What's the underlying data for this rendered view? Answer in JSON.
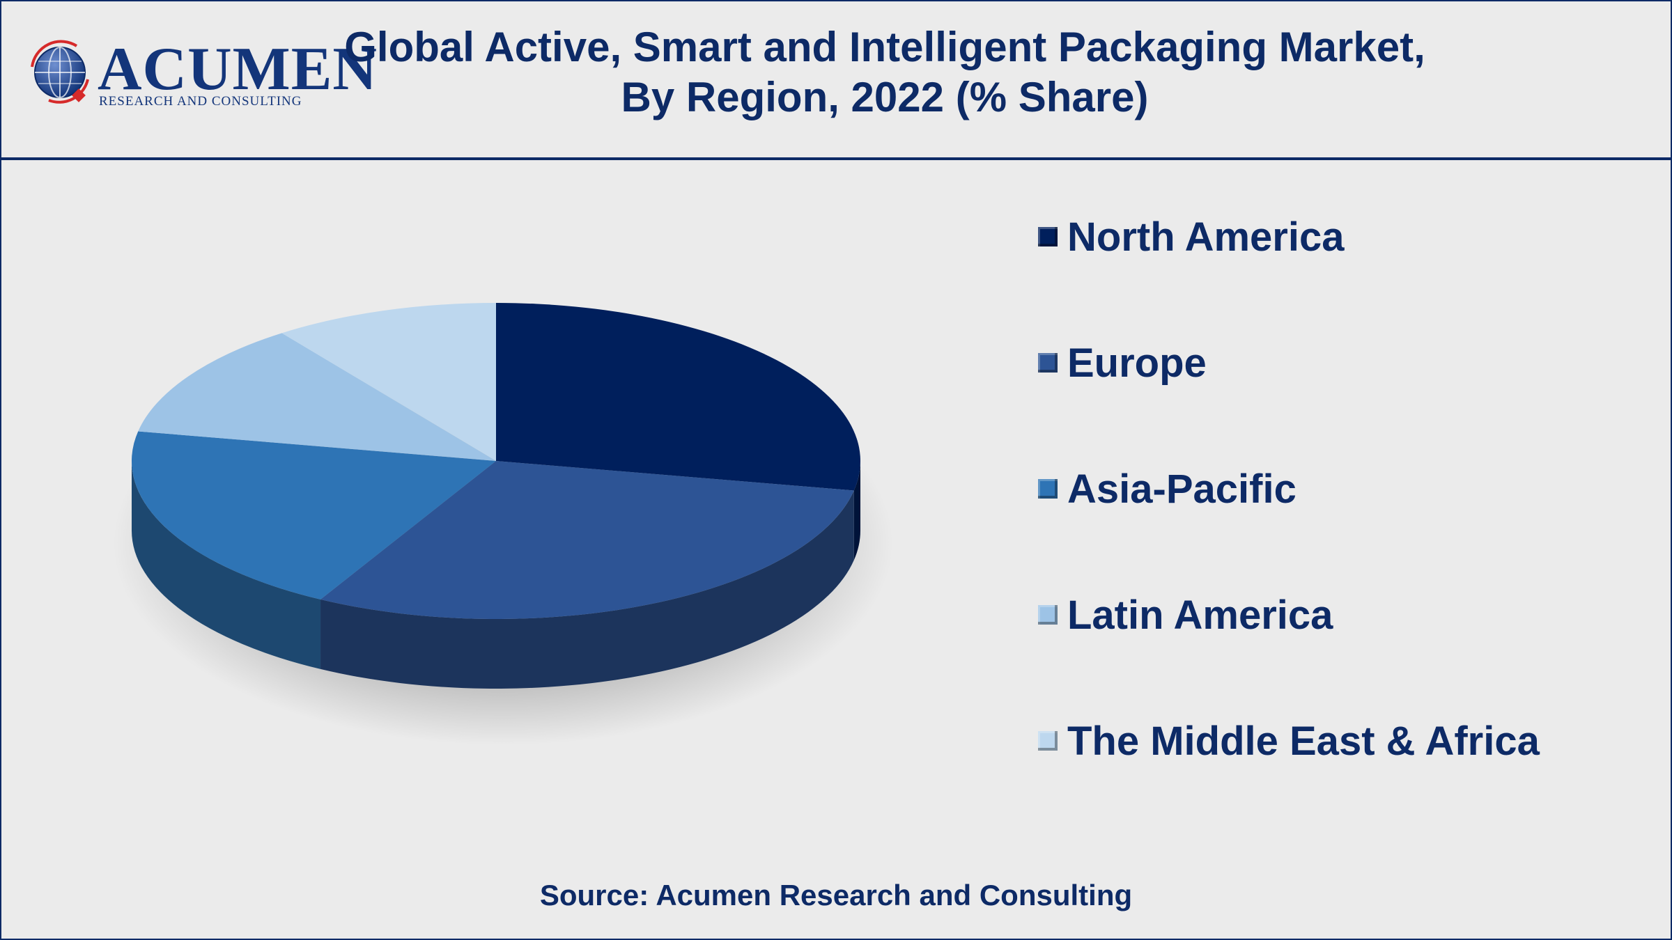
{
  "header": {
    "title_line1": "Global Active, Smart and Intelligent Packaging Market,",
    "title_line2": "By Region, 2022 (% Share)"
  },
  "logo": {
    "wordmark": "ACUMEN",
    "subtitle": "RESEARCH AND CONSULTING"
  },
  "colors": {
    "title": "#0d2a66",
    "background": "#ebebeb"
  },
  "chart_data": {
    "type": "pie",
    "style": "3d",
    "title": "Global Active, Smart and Intelligent Packaging Market, By Region, 2022 (% Share)",
    "legend_position": "right",
    "data_labels_shown": false,
    "series": [
      {
        "name": "North America",
        "value": 28,
        "color": "#001f5c"
      },
      {
        "name": "Europe",
        "value": 30,
        "color": "#2d5495"
      },
      {
        "name": "Asia-Pacific",
        "value": 20,
        "color": "#2e74b5"
      },
      {
        "name": "Latin America",
        "value": 12,
        "color": "#9dc3e6"
      },
      {
        "name": "The Middle East & Africa",
        "value": 10,
        "color": "#bdd7ee"
      }
    ]
  },
  "source": "Source: Acumen Research and Consulting"
}
